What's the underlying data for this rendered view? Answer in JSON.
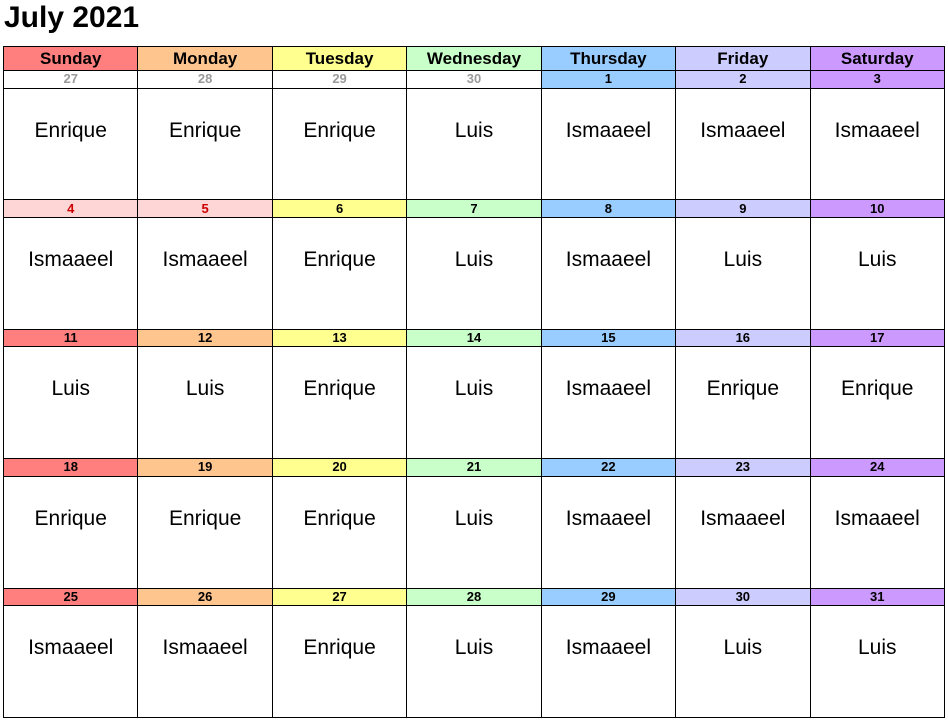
{
  "title": "July 2021",
  "colors": {
    "sunday_header": "#ff7f7f",
    "monday_header": "#ffc58f",
    "tuesday_header": "#ffff8f",
    "wednesday_header": "#c9ffc9",
    "thursday_header": "#99ccff",
    "friday_header": "#ccccff",
    "saturday_header": "#cc99ff",
    "holiday_bg": "#ffd6d6",
    "holiday_text": "#cc0000",
    "other_month_text": "#9a9a9a"
  },
  "days": [
    {
      "name": "Sunday",
      "color": "#ff7f7f"
    },
    {
      "name": "Monday",
      "color": "#ffc58f"
    },
    {
      "name": "Tuesday",
      "color": "#ffff8f"
    },
    {
      "name": "Wednesday",
      "color": "#c9ffc9"
    },
    {
      "name": "Thursday",
      "color": "#99ccff"
    },
    {
      "name": "Friday",
      "color": "#ccccff"
    },
    {
      "name": "Saturday",
      "color": "#cc99ff"
    }
  ],
  "weeks": [
    [
      {
        "date": "27",
        "name": "Enrique",
        "other": true
      },
      {
        "date": "28",
        "name": "Enrique",
        "other": true
      },
      {
        "date": "29",
        "name": "Enrique",
        "other": true
      },
      {
        "date": "30",
        "name": "Luis",
        "other": true
      },
      {
        "date": "1",
        "name": "Ismaaeel"
      },
      {
        "date": "2",
        "name": "Ismaaeel"
      },
      {
        "date": "3",
        "name": "Ismaaeel"
      }
    ],
    [
      {
        "date": "4",
        "name": "Ismaaeel",
        "holiday": true
      },
      {
        "date": "5",
        "name": "Ismaaeel",
        "holiday": true
      },
      {
        "date": "6",
        "name": "Enrique"
      },
      {
        "date": "7",
        "name": "Luis"
      },
      {
        "date": "8",
        "name": "Ismaaeel"
      },
      {
        "date": "9",
        "name": "Luis"
      },
      {
        "date": "10",
        "name": "Luis"
      }
    ],
    [
      {
        "date": "11",
        "name": "Luis"
      },
      {
        "date": "12",
        "name": "Luis"
      },
      {
        "date": "13",
        "name": "Enrique"
      },
      {
        "date": "14",
        "name": "Luis"
      },
      {
        "date": "15",
        "name": "Ismaaeel"
      },
      {
        "date": "16",
        "name": "Enrique"
      },
      {
        "date": "17",
        "name": "Enrique"
      }
    ],
    [
      {
        "date": "18",
        "name": "Enrique"
      },
      {
        "date": "19",
        "name": "Enrique"
      },
      {
        "date": "20",
        "name": "Enrique"
      },
      {
        "date": "21",
        "name": "Luis"
      },
      {
        "date": "22",
        "name": "Ismaaeel"
      },
      {
        "date": "23",
        "name": "Ismaaeel"
      },
      {
        "date": "24",
        "name": "Ismaaeel"
      }
    ],
    [
      {
        "date": "25",
        "name": "Ismaaeel"
      },
      {
        "date": "26",
        "name": "Ismaaeel"
      },
      {
        "date": "27",
        "name": "Enrique"
      },
      {
        "date": "28",
        "name": "Luis"
      },
      {
        "date": "29",
        "name": "Ismaaeel"
      },
      {
        "date": "30",
        "name": "Luis"
      },
      {
        "date": "31",
        "name": "Luis"
      }
    ]
  ]
}
